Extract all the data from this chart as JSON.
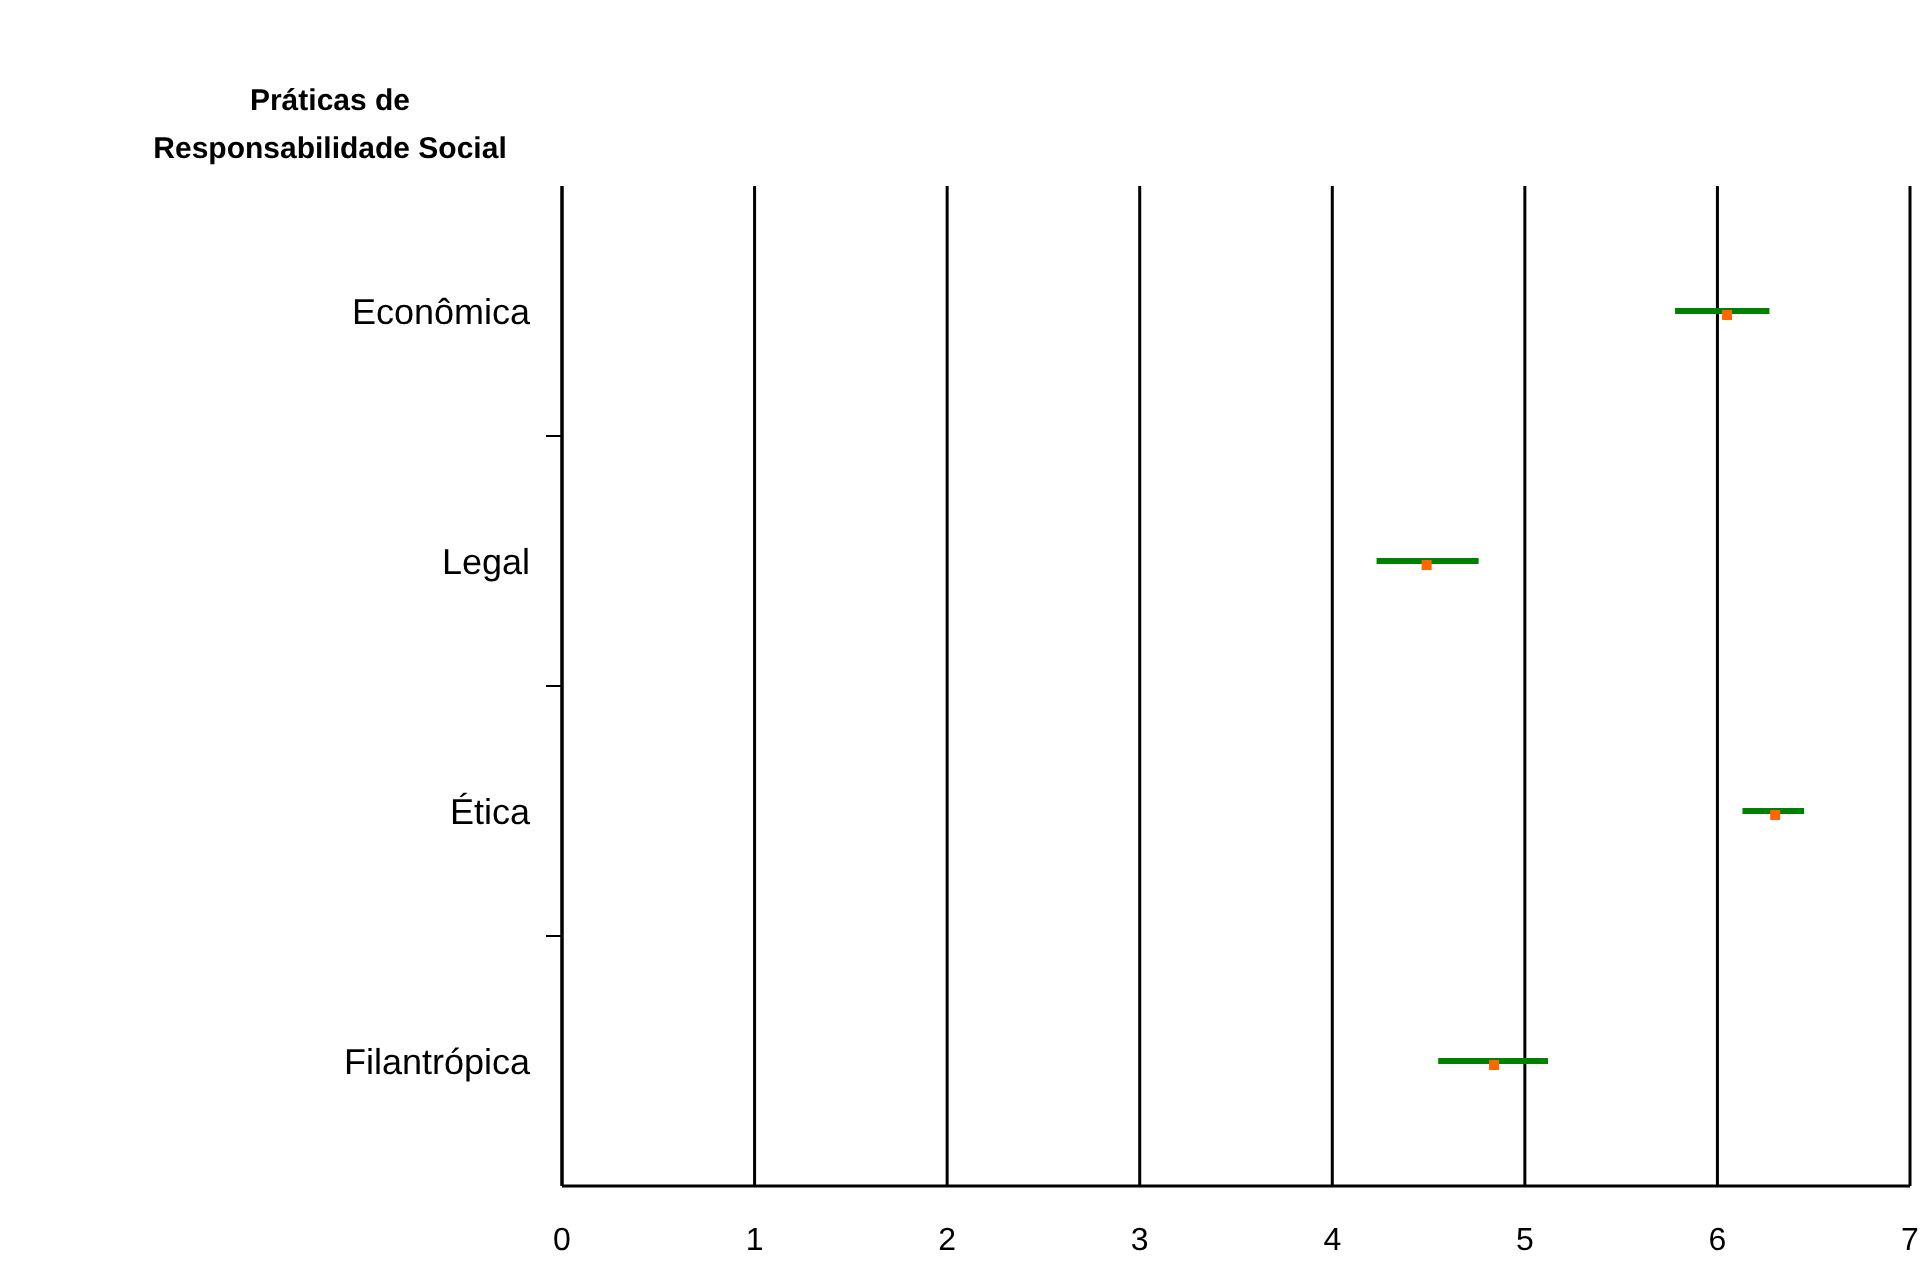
{
  "chart_data": {
    "type": "scatter",
    "orientation": "horizontal",
    "ylabel": "Práticas de Responsabilidade Social",
    "categories": [
      "Econômica",
      "Legal",
      "Ética",
      "Filantrópica"
    ],
    "series": [
      {
        "color": "#ff6600",
        "values": [
          6.05,
          4.49,
          6.3,
          4.84
        ],
        "errors": [
          [
            5.78,
            6.27
          ],
          [
            4.23,
            4.76
          ],
          [
            6.13,
            6.45
          ],
          [
            4.55,
            5.12
          ]
        ]
      }
    ],
    "xlim": [
      0,
      7
    ],
    "xticks": [
      0,
      1,
      2,
      3,
      4,
      5,
      6,
      7
    ],
    "grid": "x",
    "marker": "square"
  }
}
